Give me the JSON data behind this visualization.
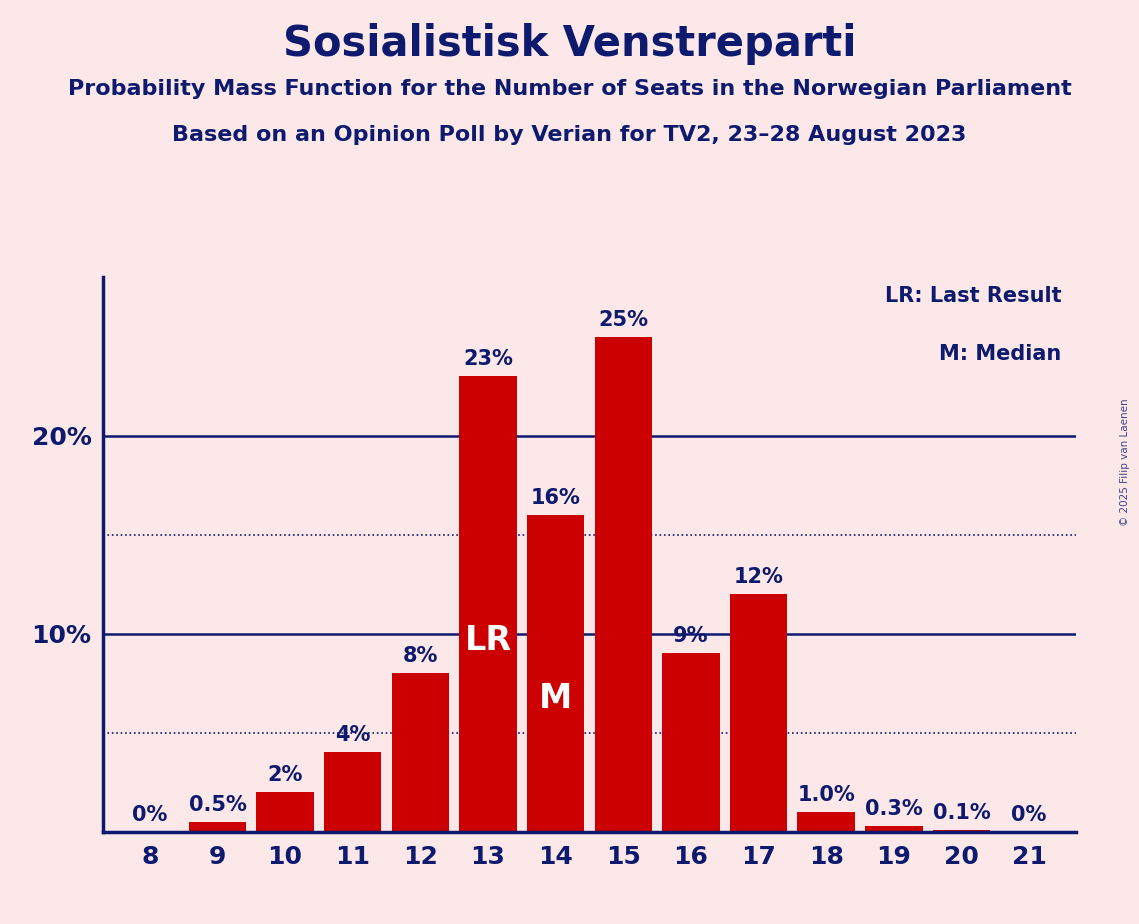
{
  "title": "Sosialistisk Venstreparti",
  "subtitle1": "Probability Mass Function for the Number of Seats in the Norwegian Parliament",
  "subtitle2": "Based on an Opinion Poll by Verian for TV2, 23–28 August 2023",
  "copyright": "© 2025 Filip van Laenen",
  "seats": [
    8,
    9,
    10,
    11,
    12,
    13,
    14,
    15,
    16,
    17,
    18,
    19,
    20,
    21
  ],
  "probabilities": [
    0.0,
    0.5,
    2.0,
    4.0,
    8.0,
    23.0,
    16.0,
    25.0,
    9.0,
    12.0,
    1.0,
    0.3,
    0.1,
    0.0
  ],
  "bar_color": "#cc0000",
  "background_color": "#fce8e8",
  "text_color": "#0d1a6e",
  "axis_color": "#0d1a6e",
  "grid_color": "#0d1a6e",
  "ytick_labels": [
    "",
    "10%",
    "20%"
  ],
  "ytick_positions": [
    0,
    10,
    20
  ],
  "dotted_lines": [
    5.0,
    15.0
  ],
  "LR_seat": 13,
  "M_seat": 14,
  "legend_lr": "LR: Last Result",
  "legend_m": "M: Median",
  "ylim": [
    0,
    28
  ],
  "title_fontsize": 30,
  "subtitle_fontsize": 16,
  "bar_label_fontsize": 15,
  "tick_fontsize": 18,
  "legend_fontsize": 15,
  "lr_m_fontsize": 24
}
